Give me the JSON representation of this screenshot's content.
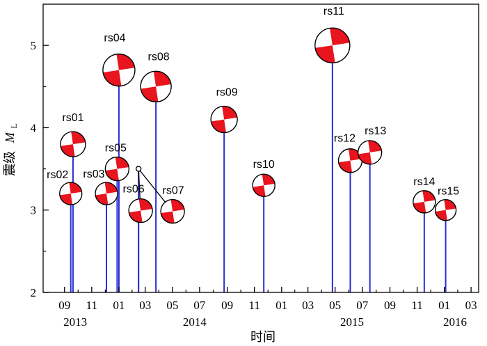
{
  "chart_data": {
    "type": "scatter",
    "subtype": "stem-with-focal-mechanism-beachballs",
    "title": "",
    "xlabel": "时间",
    "ylabel_prefix": "震级",
    "ylabel_symbol": "M",
    "ylabel_subscript": "L",
    "ylim": [
      2,
      5.5
    ],
    "y_ticks": [
      "2",
      "3",
      "4",
      "5"
    ],
    "x_range": [
      "2013-07-15",
      "2016-03-18"
    ],
    "x_tick_labels": [
      {
        "date": "2013-09-01",
        "label": "09"
      },
      {
        "date": "2013-11-01",
        "label": "11"
      },
      {
        "date": "2014-01-01",
        "label": "01"
      },
      {
        "date": "2014-03-01",
        "label": "03"
      },
      {
        "date": "2014-05-01",
        "label": "05"
      },
      {
        "date": "2014-07-01",
        "label": "07"
      },
      {
        "date": "2014-09-01",
        "label": "09"
      },
      {
        "date": "2014-11-01",
        "label": "11"
      },
      {
        "date": "2015-01-01",
        "label": "01"
      },
      {
        "date": "2015-03-01",
        "label": "03"
      },
      {
        "date": "2015-05-01",
        "label": "05"
      },
      {
        "date": "2015-07-01",
        "label": "07"
      },
      {
        "date": "2015-09-01",
        "label": "09"
      },
      {
        "date": "2015-11-01",
        "label": "11"
      },
      {
        "date": "2016-01-01",
        "label": "01"
      },
      {
        "date": "2016-03-01",
        "label": "03"
      }
    ],
    "year_labels": [
      {
        "date": "2013-09-25",
        "label": "2013"
      },
      {
        "date": "2014-06-20",
        "label": "2014"
      },
      {
        "date": "2015-06-08",
        "label": "2015"
      },
      {
        "date": "2016-01-25",
        "label": "2016"
      }
    ],
    "events": [
      {
        "name": "rs01",
        "date": "2013-09-20",
        "magnitude": 3.8
      },
      {
        "name": "rs02",
        "date": "2013-09-15",
        "magnitude": 3.2
      },
      {
        "name": "rs03",
        "date": "2013-12-04",
        "magnitude": 3.2
      },
      {
        "name": "rs04",
        "date": "2014-01-01",
        "magnitude": 4.7
      },
      {
        "name": "rs05",
        "date": "2013-12-28",
        "magnitude": 3.5
      },
      {
        "name": "rs06",
        "date": "2014-02-14",
        "magnitude": 3.5
      },
      {
        "name": "rs07",
        "date": "2014-02-14",
        "magnitude": 3.5
      },
      {
        "name": "rs08",
        "date": "2014-03-25",
        "magnitude": 4.5
      },
      {
        "name": "rs09",
        "date": "2014-08-25",
        "magnitude": 4.1
      },
      {
        "name": "rs10",
        "date": "2014-11-22",
        "magnitude": 3.3
      },
      {
        "name": "rs11",
        "date": "2015-04-25",
        "magnitude": 5.0
      },
      {
        "name": "rs12",
        "date": "2015-06-04",
        "magnitude": 3.6
      },
      {
        "name": "rs13",
        "date": "2015-07-18",
        "magnitude": 3.7
      },
      {
        "name": "rs14",
        "date": "2015-11-17",
        "magnitude": 3.1
      },
      {
        "name": "rs15",
        "date": "2016-01-04",
        "magnitude": 3.0
      }
    ],
    "colors": {
      "stem": "#2a2fd6",
      "beachball_compression": "#e8141e",
      "beachball_dilatation": "#ffffff",
      "axis": "#000000"
    }
  }
}
